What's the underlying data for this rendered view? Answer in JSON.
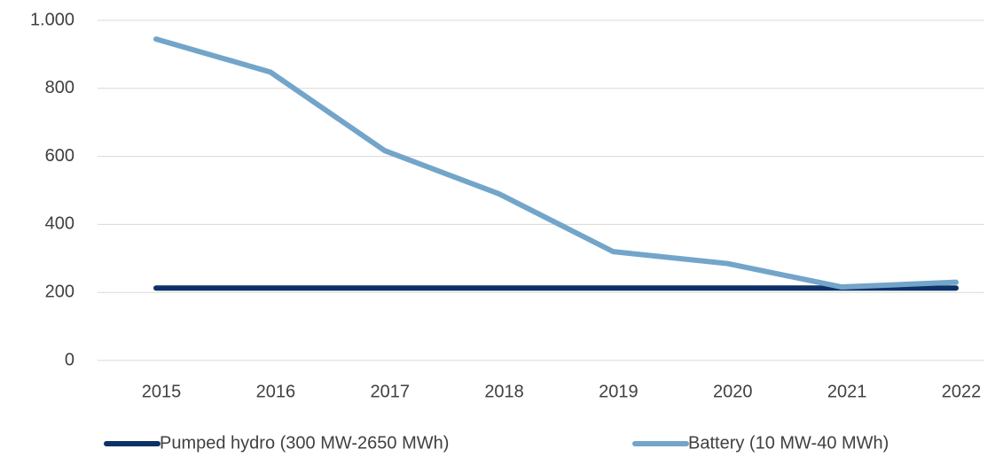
{
  "chart_data": {
    "type": "line",
    "categories": [
      "2015",
      "2016",
      "2017",
      "2018",
      "2019",
      "2020",
      "2021",
      "2022"
    ],
    "series": [
      {
        "name": "Pumped hydro (300 MW-2650 MWh)",
        "color": "#0c3166",
        "values": [
          213,
          213,
          213,
          213,
          213,
          213,
          213,
          213
        ]
      },
      {
        "name": "Battery (10 MW-40 MWh)",
        "color": "#72a5c9",
        "values": [
          945,
          848,
          617,
          490,
          320,
          285,
          216,
          230
        ]
      }
    ],
    "ylim": [
      0,
      1000
    ],
    "yticks": [
      0,
      200,
      400,
      600,
      800,
      {
        "value": 1000,
        "label": "1.000"
      }
    ],
    "grid": true,
    "legend": "bottom"
  }
}
